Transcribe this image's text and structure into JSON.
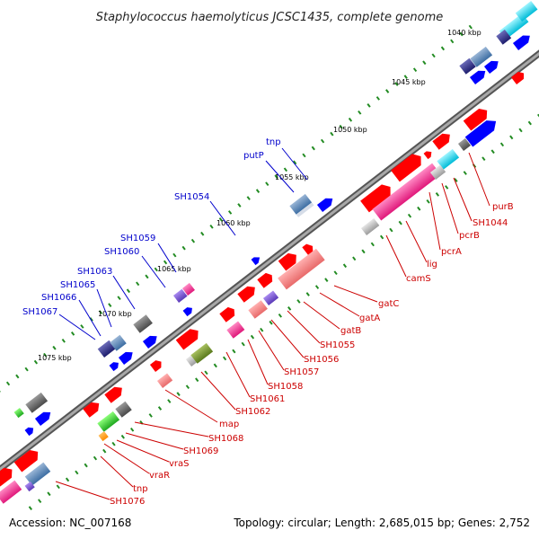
{
  "title": "Staphylococcus haemolyticus JCSC1435, complete genome",
  "footer": {
    "accession": "Accession: NC_007168",
    "topology": "Topology: circular; Length: 2,685,015 bp; Genes: 2,752"
  },
  "scale_labels": [
    "1040 kbp",
    "1045 kbp",
    "1050 kbp",
    "1055 kbp",
    "1060 kbp",
    "1065 kbp",
    "1070 kbp",
    "1075 kbp"
  ],
  "upper_gene_labels": [
    "tnp",
    "putP",
    "SH1054",
    "SH1059",
    "SH1060",
    "SH1063",
    "SH1065",
    "SH1066",
    "SH1067"
  ],
  "lower_gene_labels": [
    "purB",
    "SH1044",
    "pcrB",
    "pcrA",
    "lig",
    "camS",
    "gatC",
    "gatA",
    "gatB",
    "SH1055",
    "SH1056",
    "SH1057",
    "SH1058",
    "SH1061",
    "SH1062",
    "map",
    "SH1068",
    "SH1069",
    "vraS",
    "vraR",
    "tnp",
    "SH1076"
  ],
  "colors": {
    "backbone": "#8c8c8c",
    "tick_green": "#228b22",
    "forward_blue": "#0000ff",
    "reverse_red": "#ff0000",
    "label_blue": "#0000cc",
    "label_red": "#cc0000"
  }
}
